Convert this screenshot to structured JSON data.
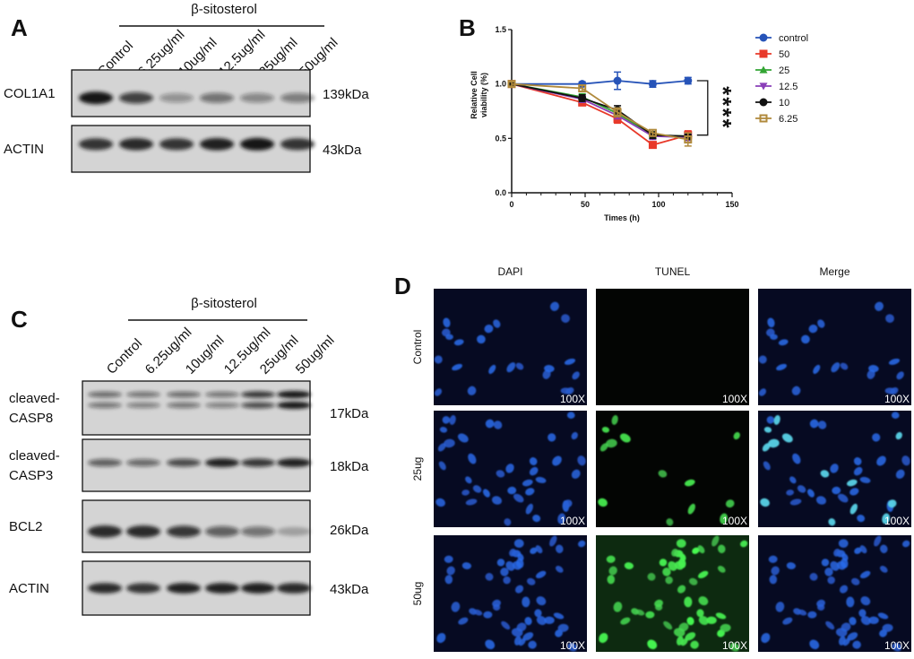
{
  "panel_a": {
    "letter": "A",
    "group_label": "β-sitosterol",
    "lanes": [
      "Control",
      "6.25ug/ml",
      "10ug/ml",
      "12.5ug/ml",
      "25ug/ml",
      "50ug/ml"
    ],
    "blots": [
      {
        "name": [
          "COL1A1"
        ],
        "size": "139kDa"
      },
      {
        "name": [
          "ACTIN"
        ],
        "size": "43kDa"
      }
    ]
  },
  "chart_data": {
    "type": "line",
    "letter": "B",
    "ylabel": [
      "Relative Cell",
      "viability (%)"
    ],
    "xlabel": "Times (h)",
    "x": [
      0,
      48,
      72,
      96,
      120
    ],
    "xlim": [
      0,
      150
    ],
    "xticks": [
      0,
      50,
      100,
      150
    ],
    "ylim": [
      0,
      1.5
    ],
    "yticks": [
      {
        "value": 0,
        "label": "0.0"
      },
      0.5,
      {
        "value": 1,
        "label": "1.0"
      },
      1.5
    ],
    "series": [
      {
        "name": "control",
        "color": "#2653b8",
        "marker": "circle",
        "values": [
          1.0,
          1.0,
          1.03,
          1.0,
          1.03
        ],
        "errors": [
          0.02,
          0.02,
          0.08,
          0.03,
          0.03
        ]
      },
      {
        "name": "50",
        "color": "#e8392a",
        "marker": "square",
        "values": [
          1.0,
          0.83,
          0.68,
          0.44,
          0.53
        ],
        "errors": [
          0.02,
          0.03,
          0.04,
          0.02,
          0.04
        ]
      },
      {
        "name": "25",
        "color": "#33a534",
        "marker": "triangle",
        "values": [
          1.0,
          0.88,
          0.73,
          0.53,
          0.52
        ],
        "errors": [
          0.02,
          0.03,
          0.03,
          0.03,
          0.03
        ]
      },
      {
        "name": "12.5",
        "color": "#8a3fb8",
        "marker": "triangle-down",
        "values": [
          1.0,
          0.86,
          0.71,
          0.52,
          0.51
        ],
        "errors": [
          0.02,
          0.03,
          0.03,
          0.03,
          0.03
        ]
      },
      {
        "name": "10",
        "color": "#111111",
        "marker": "circle",
        "values": [
          1.0,
          0.87,
          0.76,
          0.53,
          0.52
        ],
        "errors": [
          0.02,
          0.03,
          0.04,
          0.03,
          0.03
        ]
      },
      {
        "name": "6.25",
        "color": "#b08a3c",
        "marker": "open-square",
        "values": [
          1.0,
          0.96,
          0.74,
          0.55,
          0.49
        ],
        "errors": [
          0.02,
          0.03,
          0.04,
          0.03,
          0.06
        ]
      }
    ],
    "annotation": "****"
  },
  "panel_c": {
    "letter": "C",
    "group_label": "β-sitosterol",
    "lanes": [
      "Control",
      "6.25ug/ml",
      "10ug/ml",
      "12.5ug/ml",
      "25ug/ml",
      "50ug/ml"
    ],
    "blots": [
      {
        "name": [
          "cleaved-",
          "CASP8"
        ],
        "size": "17kDa"
      },
      {
        "name": [
          "cleaved-",
          "CASP3"
        ],
        "size": "18kDa"
      },
      {
        "name": [
          "BCL2"
        ],
        "size": "26kDa"
      },
      {
        "name": [
          "ACTIN"
        ],
        "size": "43kDa"
      }
    ]
  },
  "panel_d": {
    "letter": "D",
    "columns": [
      "DAPI",
      "TUNEL",
      "Merge"
    ],
    "rows": [
      "Control",
      "25ug",
      "50ug"
    ],
    "magnification": "100X"
  }
}
